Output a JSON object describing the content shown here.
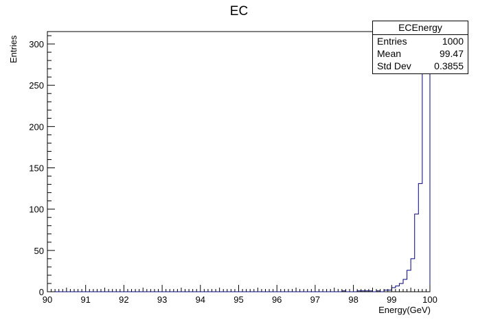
{
  "chart_data": {
    "type": "bar",
    "title": "EC",
    "xlabel": "Energy(GeV)",
    "ylabel": "Entries",
    "xlim": [
      90,
      100
    ],
    "ylim": [
      0,
      315
    ],
    "x_ticks": [
      "90",
      "91",
      "92",
      "93",
      "94",
      "95",
      "96",
      "97",
      "98",
      "99",
      "100"
    ],
    "y_ticks": [
      "0",
      "50",
      "100",
      "150",
      "200",
      "250",
      "300"
    ],
    "grid": false,
    "bins": {
      "start": 90,
      "width": 0.1
    },
    "series": [
      {
        "name": "ECEnergy",
        "color": "#000080",
        "values": [
          0,
          0,
          0,
          0,
          0,
          0,
          0,
          0,
          0,
          0,
          0,
          0,
          0,
          0,
          0,
          0,
          0,
          0,
          0,
          0,
          0,
          0,
          0,
          0,
          0,
          0,
          0,
          0,
          0,
          0,
          0,
          0,
          0,
          0,
          0,
          0,
          0,
          0,
          0,
          0,
          0,
          0,
          0,
          0,
          0,
          0,
          0,
          0,
          0,
          0,
          0,
          0,
          0,
          0,
          0,
          0,
          0,
          0,
          0,
          0,
          0,
          0,
          0,
          0,
          0,
          0,
          0,
          0,
          0,
          0,
          0,
          0,
          0,
          0,
          0,
          0,
          0,
          1,
          0,
          0,
          0,
          1,
          1,
          1,
          1,
          0,
          1,
          0,
          2,
          2,
          5,
          7,
          10,
          15,
          26,
          40,
          94,
          131,
          300,
          315
        ]
      }
    ]
  },
  "stats_box": {
    "title": "ECEnergy",
    "rows": [
      {
        "label": "Entries",
        "value": "1000"
      },
      {
        "label": "Mean",
        "value": "99.47"
      },
      {
        "label": "Std Dev",
        "value": "0.3855"
      }
    ]
  }
}
